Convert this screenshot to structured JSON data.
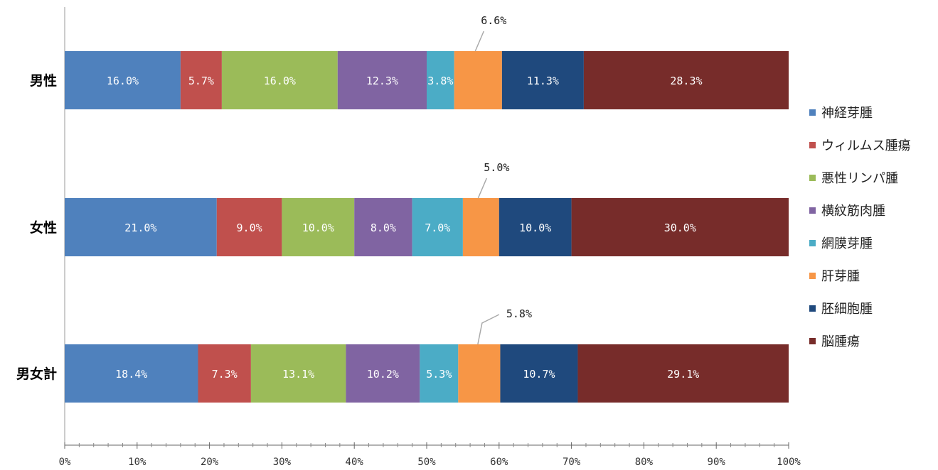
{
  "chart_data": {
    "type": "bar",
    "orientation": "horizontal",
    "stacked": "percent",
    "categories": [
      "男性",
      "女性",
      "男女計"
    ],
    "series": [
      {
        "name": "神経芽腫",
        "color": "#4f81bd",
        "values": [
          16.0,
          21.0,
          18.4
        ],
        "labels": [
          "16.0%",
          "21.0%",
          "18.4%"
        ]
      },
      {
        "name": "ウィルムス腫瘍",
        "color": "#c0504d",
        "values": [
          5.7,
          9.0,
          7.3
        ],
        "labels": [
          "5.7%",
          "9.0%",
          "7.3%"
        ]
      },
      {
        "name": "悪性リンパ腫",
        "color": "#9bbb59",
        "values": [
          16.0,
          10.0,
          13.1
        ],
        "labels": [
          "16.0%",
          "10.0%",
          "13.1%"
        ]
      },
      {
        "name": "横紋筋肉腫",
        "color": "#8064a2",
        "values": [
          12.3,
          8.0,
          10.2
        ],
        "labels": [
          "12.3%",
          "8.0%",
          "10.2%"
        ]
      },
      {
        "name": "網膜芽腫",
        "color": "#4bacc6",
        "values": [
          3.8,
          7.0,
          5.3
        ],
        "labels": [
          "3.8%",
          "7.0%",
          "5.3%"
        ]
      },
      {
        "name": "肝芽腫",
        "color": "#f79646",
        "values": [
          6.6,
          5.0,
          5.8
        ],
        "labels": [
          "6.6%",
          "5.0%",
          "5.8%"
        ],
        "label_position": "callout"
      },
      {
        "name": "胚細胞腫",
        "color": "#1f497d",
        "values": [
          11.3,
          10.0,
          10.7
        ],
        "labels": [
          "11.3%",
          "10.0%",
          "10.7%"
        ]
      },
      {
        "name": "脳腫瘍",
        "color": "#772c2a",
        "values": [
          28.3,
          30.0,
          29.1
        ],
        "labels": [
          "28.3%",
          "30.0%",
          "29.1%"
        ]
      }
    ],
    "xlim": [
      0,
      100
    ],
    "xticks": [
      "0%",
      "10%",
      "20%",
      "30%",
      "40%",
      "50%",
      "60%",
      "70%",
      "80%",
      "90%",
      "100%"
    ],
    "legend_position": "right",
    "grid": false
  }
}
